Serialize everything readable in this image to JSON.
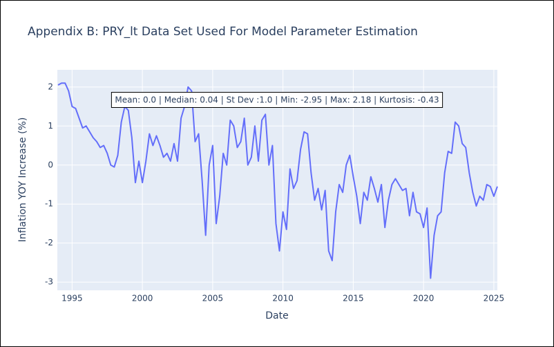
{
  "chart_data": {
    "type": "line",
    "title": "Appendix B: PRY_lt Data Set Used For Model Parameter Estimation",
    "xlabel": "Date",
    "ylabel": "Inflation YOY Increase (%)",
    "annotation": "Mean: 0.0 | Median: 0.04 | St Dev :1.0 | Min: -2.95 | Max: 2.18 | Kurtosis: -0.43",
    "color": "#636efa",
    "grid": true,
    "xlim": [
      1993.95,
      2025.25
    ],
    "xticks": [
      1995,
      2000,
      2005,
      2010,
      2015,
      2020,
      2025
    ],
    "ylim": [
      -3.21,
      2.44
    ],
    "yticks": [
      -3,
      -2,
      -1,
      0,
      1,
      2
    ],
    "x": [
      1994,
      1994.25,
      1994.5,
      1994.75,
      1995,
      1995.25,
      1995.5,
      1995.75,
      1996,
      1996.25,
      1996.5,
      1996.75,
      1997,
      1997.25,
      1997.5,
      1997.75,
      1998,
      1998.25,
      1998.5,
      1998.75,
      1999,
      1999.25,
      1999.5,
      1999.75,
      2000,
      2000.25,
      2000.5,
      2000.75,
      2001,
      2001.25,
      2001.5,
      2001.75,
      2002,
      2002.25,
      2002.5,
      2002.75,
      2003,
      2003.25,
      2003.5,
      2003.75,
      2004,
      2004.25,
      2004.5,
      2004.75,
      2005,
      2005.25,
      2005.5,
      2005.75,
      2006,
      2006.25,
      2006.5,
      2006.75,
      2007,
      2007.25,
      2007.5,
      2007.75,
      2008,
      2008.25,
      2008.5,
      2008.75,
      2009,
      2009.25,
      2009.5,
      2009.75,
      2010,
      2010.25,
      2010.5,
      2010.75,
      2011,
      2011.25,
      2011.5,
      2011.75,
      2012,
      2012.25,
      2012.5,
      2012.75,
      2013,
      2013.25,
      2013.5,
      2013.75,
      2014,
      2014.25,
      2014.5,
      2014.75,
      2015,
      2015.25,
      2015.5,
      2015.75,
      2016,
      2016.25,
      2016.5,
      2016.75,
      2017,
      2017.25,
      2017.5,
      2017.75,
      2018,
      2018.25,
      2018.5,
      2018.75,
      2019,
      2019.25,
      2019.5,
      2019.75,
      2020,
      2020.25,
      2020.5,
      2020.75,
      2021,
      2021.25,
      2021.5,
      2021.75,
      2022,
      2022.25,
      2022.5,
      2022.75,
      2023,
      2023.25,
      2023.5,
      2023.75,
      2024,
      2024.25,
      2024.5,
      2024.75,
      2025,
      2025.25
    ],
    "values": [
      2.05,
      2.1,
      2.1,
      1.9,
      1.5,
      1.45,
      1.2,
      0.95,
      1.0,
      0.85,
      0.7,
      0.6,
      0.45,
      0.5,
      0.3,
      0.0,
      -0.05,
      0.25,
      1.1,
      1.5,
      1.4,
      0.7,
      -0.45,
      0.1,
      -0.45,
      0.1,
      0.8,
      0.5,
      0.75,
      0.5,
      0.2,
      0.3,
      0.1,
      0.55,
      0.1,
      1.2,
      1.5,
      2.0,
      1.9,
      0.6,
      0.8,
      -0.4,
      -1.8,
      0.0,
      0.5,
      -1.5,
      -0.8,
      0.3,
      0.0,
      1.15,
      1.0,
      0.45,
      0.6,
      1.2,
      0.0,
      0.2,
      1.0,
      0.1,
      1.15,
      1.3,
      0.0,
      0.5,
      -1.5,
      -2.2,
      -1.2,
      -1.65,
      -0.1,
      -0.6,
      -0.4,
      0.4,
      0.85,
      0.8,
      -0.2,
      -0.9,
      -0.6,
      -1.15,
      -0.65,
      -2.2,
      -2.45,
      -1.2,
      -0.5,
      -0.7,
      0.0,
      0.25,
      -0.3,
      -0.8,
      -1.5,
      -0.7,
      -0.9,
      -0.3,
      -0.6,
      -0.95,
      -0.5,
      -1.6,
      -0.9,
      -0.5,
      -0.35,
      -0.5,
      -0.65,
      -0.6,
      -1.3,
      -0.7,
      -1.2,
      -1.25,
      -1.6,
      -1.1,
      -2.9,
      -1.8,
      -1.3,
      -1.2,
      -0.2,
      0.35,
      0.3,
      1.1,
      1.0,
      0.55,
      0.45,
      -0.2,
      -0.7,
      -1.05,
      -0.8,
      -0.9,
      -0.5,
      -0.55,
      -0.8,
      -0.55
    ]
  }
}
